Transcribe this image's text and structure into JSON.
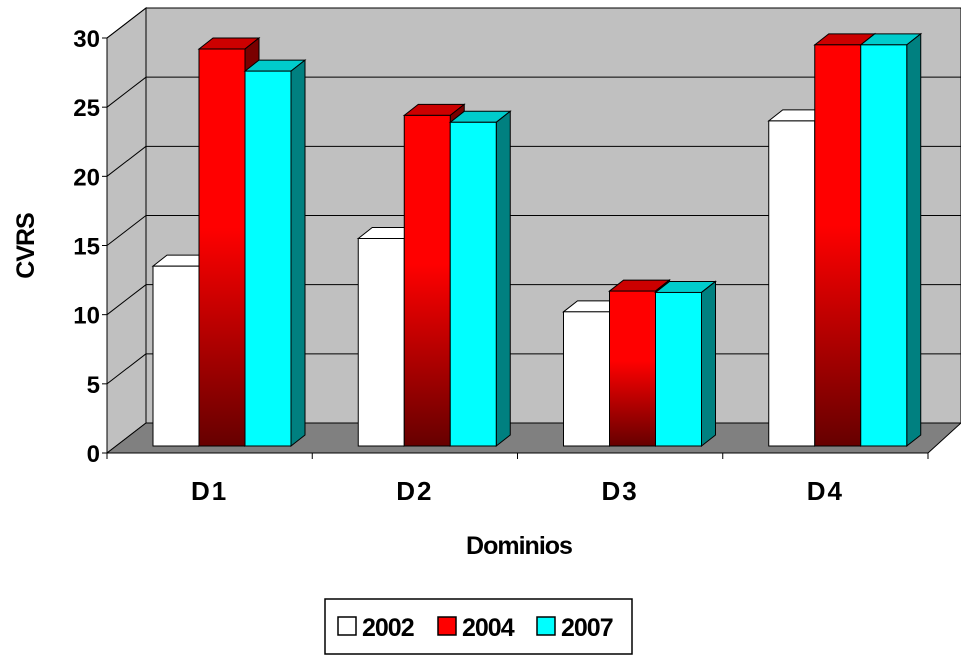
{
  "chart_data": {
    "type": "bar",
    "style": "3d-clustered-column",
    "title": "",
    "xlabel": "Dominios",
    "ylabel": "CVRS",
    "categories": [
      "D1",
      "D2",
      "D3",
      "D4"
    ],
    "series": [
      {
        "name": "2002",
        "values": [
          13.0,
          15.0,
          9.7,
          23.5
        ],
        "color": "#ffffff"
      },
      {
        "name": "2004",
        "values": [
          28.7,
          23.9,
          11.2,
          29.0
        ],
        "color": "#ff0000"
      },
      {
        "name": "2007",
        "values": [
          27.1,
          23.4,
          11.1,
          29.0
        ],
        "color": "#00ffff"
      }
    ],
    "ylim": [
      0,
      30
    ],
    "yticks": [
      "0",
      "5",
      "10",
      "15",
      "20",
      "25",
      "30"
    ],
    "grid": true,
    "legend": "bottom",
    "colors": {
      "wall": "#c0c0c0",
      "floor": "#808080",
      "gridline": "#000000"
    }
  }
}
